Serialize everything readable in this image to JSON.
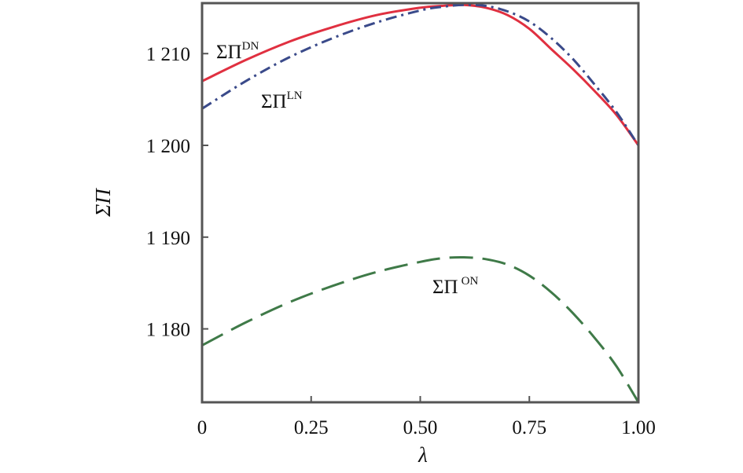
{
  "chart_data": {
    "type": "line",
    "xlabel": "λ",
    "ylabel": "ΣΠ",
    "xlim": [
      0,
      1
    ],
    "ylim": [
      1172,
      1215.5
    ],
    "x_ticks": [
      "0",
      "0.25",
      "0.50",
      "0.75",
      "1.00"
    ],
    "y_ticks": [
      "1 180",
      "1 190",
      "1 200",
      "1 210"
    ],
    "y_tick_values": [
      1180,
      1190,
      1200,
      1210
    ],
    "x_tick_values": [
      0,
      0.25,
      0.5,
      0.75,
      1
    ],
    "grid": false,
    "legend": "none",
    "series": [
      {
        "name": "ΣΠ^DN",
        "label_main": "ΣΠ",
        "label_sup": "DN",
        "color": "#e03040",
        "style": "solid",
        "x": [
          0,
          0.1,
          0.2,
          0.3,
          0.4,
          0.5,
          0.55,
          0.6,
          0.65,
          0.7,
          0.75,
          0.8,
          0.85,
          0.9,
          0.95,
          1.0
        ],
        "y": [
          1207,
          1209.3,
          1211.3,
          1212.9,
          1214.2,
          1215.0,
          1215.2,
          1215.3,
          1215.0,
          1214.2,
          1212.7,
          1210.5,
          1208.3,
          1205.9,
          1203.3,
          1200
        ]
      },
      {
        "name": "ΣΠ^LN",
        "label_main": "ΣΠ",
        "label_sup": "LN",
        "color": "#3a4a8a",
        "style": "dashdot",
        "x": [
          0,
          0.1,
          0.2,
          0.3,
          0.4,
          0.5,
          0.55,
          0.6,
          0.65,
          0.7,
          0.75,
          0.8,
          0.85,
          0.9,
          0.95,
          1.0
        ],
        "y": [
          1204,
          1207.0,
          1209.6,
          1211.7,
          1213.4,
          1214.7,
          1215.1,
          1215.3,
          1215.2,
          1214.6,
          1213.5,
          1211.7,
          1209.4,
          1206.6,
          1203.6,
          1200
        ]
      },
      {
        "name": "ΣΠ^ON",
        "label_main": "ΣΠ",
        "label_sup": "ON",
        "color": "#3f7a48",
        "style": "dashed",
        "x": [
          0,
          0.1,
          0.2,
          0.3,
          0.4,
          0.5,
          0.55,
          0.6,
          0.65,
          0.7,
          0.75,
          0.8,
          0.85,
          0.9,
          0.95,
          1.0
        ],
        "y": [
          1178.2,
          1180.7,
          1182.9,
          1184.7,
          1186.2,
          1187.3,
          1187.7,
          1187.8,
          1187.6,
          1187.0,
          1185.8,
          1184.0,
          1181.7,
          1179.0,
          1175.9,
          1172
        ]
      }
    ]
  }
}
